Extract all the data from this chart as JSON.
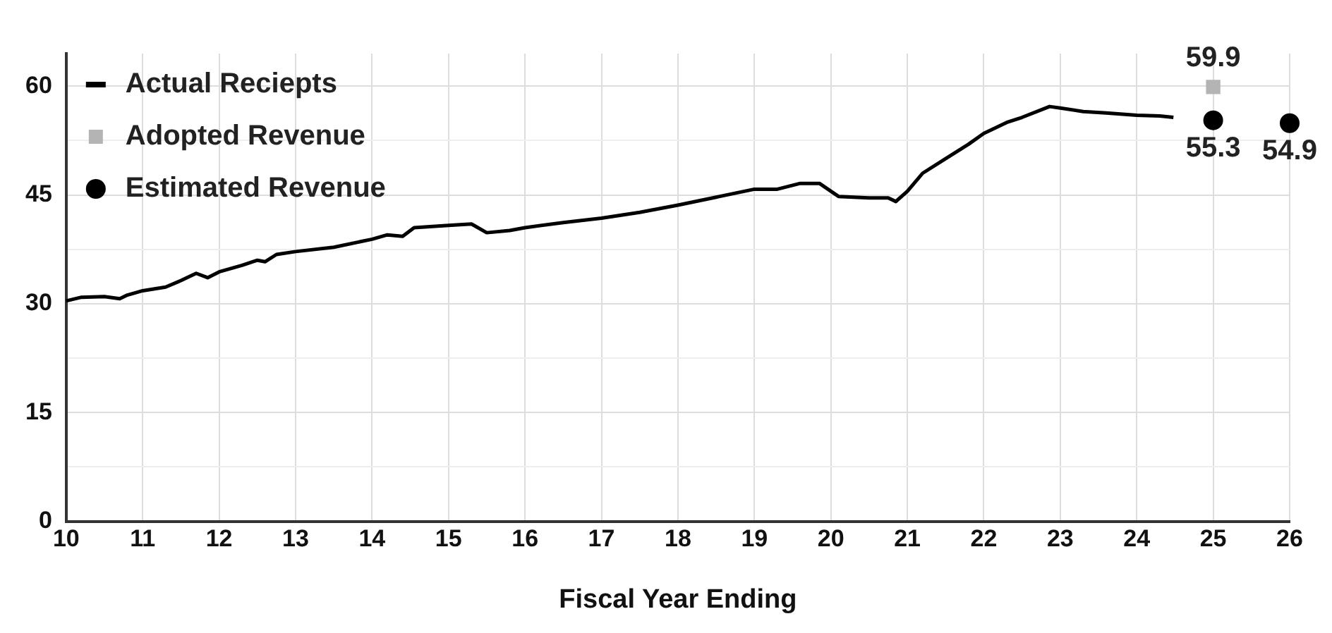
{
  "chart_data": {
    "type": "line",
    "xlabel": "Fiscal Year Ending",
    "xlim": [
      10,
      26
    ],
    "xticks": [
      10,
      11,
      12,
      13,
      14,
      15,
      16,
      17,
      18,
      19,
      20,
      21,
      22,
      23,
      24,
      25,
      26
    ],
    "ylim": [
      0,
      64.5
    ],
    "yticks": [
      0,
      {
        "value": 7.5,
        "label": null
      },
      15,
      {
        "value": 22.5,
        "label": null
      },
      30,
      {
        "value": 37.5,
        "label": null
      },
      45,
      {
        "value": 52.5,
        "label": null
      },
      60
    ],
    "grid": true,
    "legend": "top left",
    "series": [
      {
        "name": "Actual Reciepts",
        "color": "#000000",
        "marker": "none",
        "x": [
          10,
          10.2,
          10.5,
          10.7,
          10.8,
          11,
          11.3,
          11.5,
          11.7,
          11.85,
          12,
          12.3,
          12.5,
          12.6,
          12.75,
          13,
          13.5,
          14,
          14.2,
          14.4,
          14.55,
          15,
          15.3,
          15.5,
          15.8,
          16,
          16.5,
          17,
          17.5,
          18,
          18.5,
          19,
          19.3,
          19.6,
          19.85,
          20.1,
          20.5,
          20.75,
          20.85,
          21,
          21.2,
          21.5,
          21.8,
          22,
          22.3,
          22.5,
          22.86,
          23,
          23.3,
          23.6,
          24,
          24.3,
          24.48
        ],
        "values": [
          30.4,
          30.9,
          31,
          30.7,
          31.2,
          31.8,
          32.3,
          33.2,
          34.2,
          33.6,
          34.4,
          35.3,
          36,
          35.8,
          36.8,
          37.2,
          37.8,
          38.9,
          39.5,
          39.3,
          40.5,
          40.8,
          41,
          39.8,
          40.1,
          40.5,
          41.2,
          41.8,
          42.6,
          43.6,
          44.7,
          45.8,
          45.8,
          46.6,
          46.6,
          44.8,
          44.6,
          44.6,
          44.1,
          45.5,
          48,
          50,
          52,
          53.5,
          55,
          55.7,
          57.2,
          57,
          56.5,
          56.3,
          56,
          55.9,
          55.7
        ]
      },
      {
        "name": "Adopted Revenue",
        "type": "scatter",
        "color": "#b4b4b4",
        "marker": "square",
        "x": [
          25
        ],
        "values": [
          59.9
        ],
        "value_labels": [
          "59.9"
        ]
      },
      {
        "name": "Estimated Revenue",
        "type": "scatter",
        "color": "#000000",
        "marker": "circle",
        "x": [
          25,
          26
        ],
        "values": [
          55.3,
          54.9
        ],
        "value_labels": [
          "55.3",
          "54.9"
        ]
      }
    ]
  }
}
